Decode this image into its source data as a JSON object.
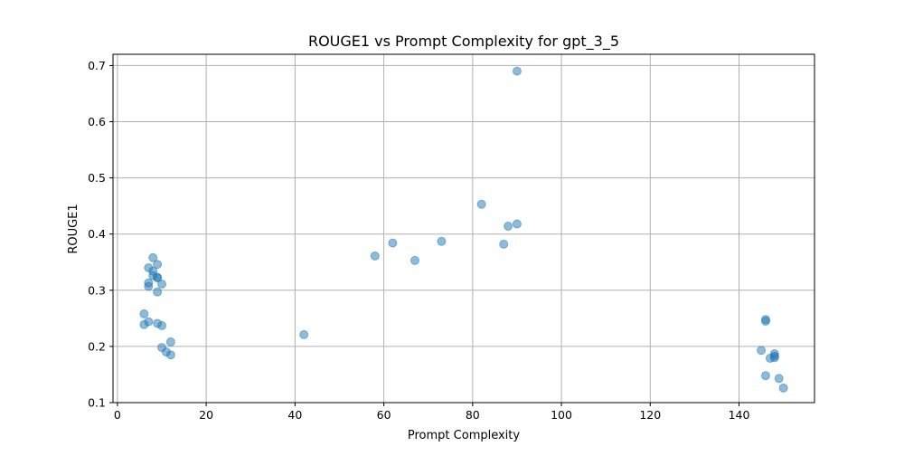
{
  "chart_data": {
    "type": "scatter",
    "title": "ROUGE1 vs Prompt Complexity for gpt_3_5",
    "xlabel": "Prompt Complexity",
    "ylabel": "ROUGE1",
    "xlim": [
      -1,
      157
    ],
    "ylim": [
      0.1,
      0.72
    ],
    "xticks": [
      0,
      20,
      40,
      60,
      80,
      100,
      120,
      140
    ],
    "yticks": [
      0.1,
      0.2,
      0.3,
      0.4,
      0.5,
      0.6,
      0.7
    ],
    "xtick_labels": [
      "0",
      "20",
      "40",
      "60",
      "80",
      "100",
      "120",
      "140"
    ],
    "ytick_labels": [
      "0.1",
      "0.2",
      "0.3",
      "0.4",
      "0.5",
      "0.6",
      "0.7"
    ],
    "grid": true,
    "marker_color": "#1f77b4",
    "marker_alpha": 0.5,
    "points": [
      {
        "x": 6,
        "y": 0.258
      },
      {
        "x": 6,
        "y": 0.239
      },
      {
        "x": 7,
        "y": 0.244
      },
      {
        "x": 7,
        "y": 0.34
      },
      {
        "x": 7,
        "y": 0.313
      },
      {
        "x": 7,
        "y": 0.307
      },
      {
        "x": 8,
        "y": 0.358
      },
      {
        "x": 8,
        "y": 0.334
      },
      {
        "x": 8,
        "y": 0.326
      },
      {
        "x": 9,
        "y": 0.346
      },
      {
        "x": 9,
        "y": 0.323
      },
      {
        "x": 9,
        "y": 0.322
      },
      {
        "x": 9,
        "y": 0.297
      },
      {
        "x": 9,
        "y": 0.241
      },
      {
        "x": 10,
        "y": 0.311
      },
      {
        "x": 10,
        "y": 0.237
      },
      {
        "x": 10,
        "y": 0.198
      },
      {
        "x": 11,
        "y": 0.19
      },
      {
        "x": 12,
        "y": 0.208
      },
      {
        "x": 12,
        "y": 0.185
      },
      {
        "x": 42,
        "y": 0.221
      },
      {
        "x": 58,
        "y": 0.361
      },
      {
        "x": 62,
        "y": 0.384
      },
      {
        "x": 67,
        "y": 0.353
      },
      {
        "x": 73,
        "y": 0.387
      },
      {
        "x": 82,
        "y": 0.453
      },
      {
        "x": 87,
        "y": 0.382
      },
      {
        "x": 88,
        "y": 0.414
      },
      {
        "x": 90,
        "y": 0.418
      },
      {
        "x": 90,
        "y": 0.69
      },
      {
        "x": 145,
        "y": 0.193
      },
      {
        "x": 146,
        "y": 0.248
      },
      {
        "x": 146,
        "y": 0.245
      },
      {
        "x": 146,
        "y": 0.148
      },
      {
        "x": 147,
        "y": 0.179
      },
      {
        "x": 148,
        "y": 0.187
      },
      {
        "x": 148,
        "y": 0.183
      },
      {
        "x": 148,
        "y": 0.18
      },
      {
        "x": 149,
        "y": 0.143
      },
      {
        "x": 150,
        "y": 0.126
      }
    ]
  }
}
